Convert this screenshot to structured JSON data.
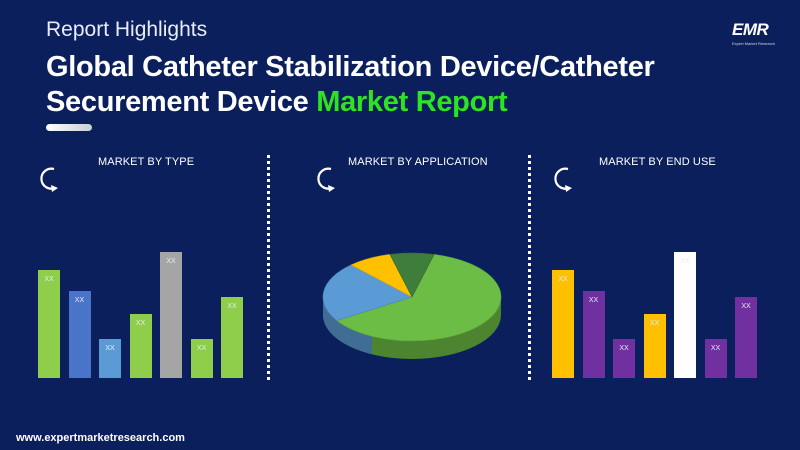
{
  "header": {
    "eyebrow": "Report Highlights",
    "title_main": "Global Catheter Stabilization Device/Catheter Securement Device ",
    "title_accent": "Market Report"
  },
  "logo": {
    "text": "EMR",
    "tagline": "Expert Market Research"
  },
  "panels": [
    {
      "heading": "MARKET BY TYPE",
      "bars": [
        {
          "label": "XX",
          "value": 0.86,
          "color": "#8fce4a"
        },
        {
          "label": "XX",
          "value": 0.69,
          "color": "#4a74c9"
        },
        {
          "label": "XX",
          "value": 0.31,
          "color": "#5b9bd5"
        },
        {
          "label": "XX",
          "value": 0.51,
          "color": "#8fce4a"
        },
        {
          "label": "XX",
          "value": 1.0,
          "color": "#a5a5a5"
        },
        {
          "label": "XX",
          "value": 0.31,
          "color": "#8fce4a"
        },
        {
          "label": "XX",
          "value": 0.64,
          "color": "#8fce4a"
        }
      ]
    },
    {
      "heading": "MARKET BY APPLICATION",
      "pie": [
        {
          "value": 0.62,
          "color": "#6cbd45"
        },
        {
          "value": 0.22,
          "color": "#5b9bd5"
        },
        {
          "value": 0.08,
          "color": "#ffc000"
        },
        {
          "value": 0.08,
          "color": "#3f7d3a"
        }
      ]
    },
    {
      "heading": "MARKET BY END USE",
      "bars": [
        {
          "label": "XX",
          "value": 0.86,
          "color": "#ffc000"
        },
        {
          "label": "XX",
          "value": 0.69,
          "color": "#7030a0"
        },
        {
          "label": "XX",
          "value": 0.31,
          "color": "#7030a0"
        },
        {
          "label": "XX",
          "value": 0.51,
          "color": "#ffc000"
        },
        {
          "label": "XX",
          "value": 1.0,
          "color": "#ffffff"
        },
        {
          "label": "XX",
          "value": 0.31,
          "color": "#7030a0"
        },
        {
          "label": "XX",
          "value": 0.64,
          "color": "#7030a0"
        }
      ]
    }
  ],
  "footer": {
    "website": "www.expertmarketresearch.com"
  },
  "colors": {
    "background": "#0b1f5c",
    "accent_green": "#2de322"
  },
  "icons": [
    "refresh-arrow-icon"
  ]
}
